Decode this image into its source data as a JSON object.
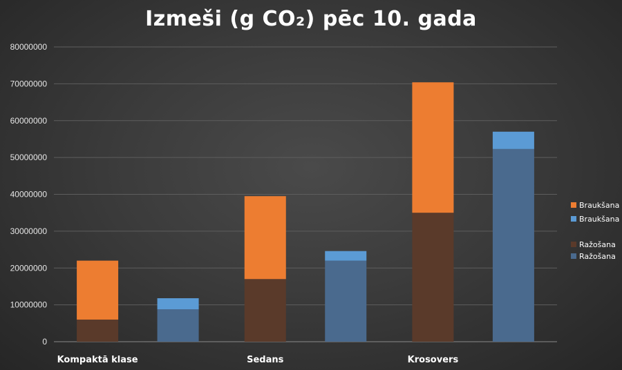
{
  "chart_data": {
    "type": "bar",
    "stacked": true,
    "title": "Izmeši (g CO₂) pēc 10. gada",
    "categories": [
      "Kompaktā klase",
      "Sedans",
      "Krosovers"
    ],
    "ylim": [
      0,
      80000000
    ],
    "yticks": [
      0,
      10000000,
      20000000,
      30000000,
      40000000,
      50000000,
      60000000,
      70000000,
      80000000
    ],
    "grid": true,
    "legend_position": "right",
    "groups": [
      {
        "bars": [
          {
            "color_set": "orange",
            "segments": [
              {
                "series": "Ražošana",
                "value": 6000000
              },
              {
                "series": "Braukšana",
                "value": 16000000
              }
            ]
          },
          {
            "color_set": "blue",
            "segments": [
              {
                "series": "Ražošana",
                "value": 8800000
              },
              {
                "series": "Braukšana",
                "value": 3000000
              }
            ]
          }
        ]
      },
      {
        "bars": [
          {
            "color_set": "orange",
            "segments": [
              {
                "series": "Ražošana",
                "value": 17000000
              },
              {
                "series": "Braukšana",
                "value": 22500000
              }
            ]
          },
          {
            "color_set": "blue",
            "segments": [
              {
                "series": "Ražošana",
                "value": 22000000
              },
              {
                "series": "Braukšana",
                "value": 2600000
              }
            ]
          }
        ]
      },
      {
        "bars": [
          {
            "color_set": "orange",
            "segments": [
              {
                "series": "Ražošana",
                "value": 35000000
              },
              {
                "series": "Braukšana",
                "value": 35400000
              }
            ]
          },
          {
            "color_set": "blue",
            "segments": [
              {
                "series": "Ražošana",
                "value": 52300000
              },
              {
                "series": "Braukšana",
                "value": 4700000
              }
            ]
          }
        ]
      }
    ],
    "legend": [
      {
        "name": "Braukšana",
        "color": "#ed7d31"
      },
      {
        "name": "Braukšana",
        "color": "#5b9bd5"
      },
      {
        "name": "Ražošana",
        "color": "#5a3a2a"
      },
      {
        "name": "Ražošana",
        "color": "#4a6a8e"
      }
    ],
    "colors": {
      "orange": {
        "Ražošana": "#5a3a2a",
        "Braukšana": "#ed7d31"
      },
      "blue": {
        "Ražošana": "#4a6a8e",
        "Braukšana": "#5b9bd5"
      },
      "grid": "#5e5e5e"
    }
  }
}
